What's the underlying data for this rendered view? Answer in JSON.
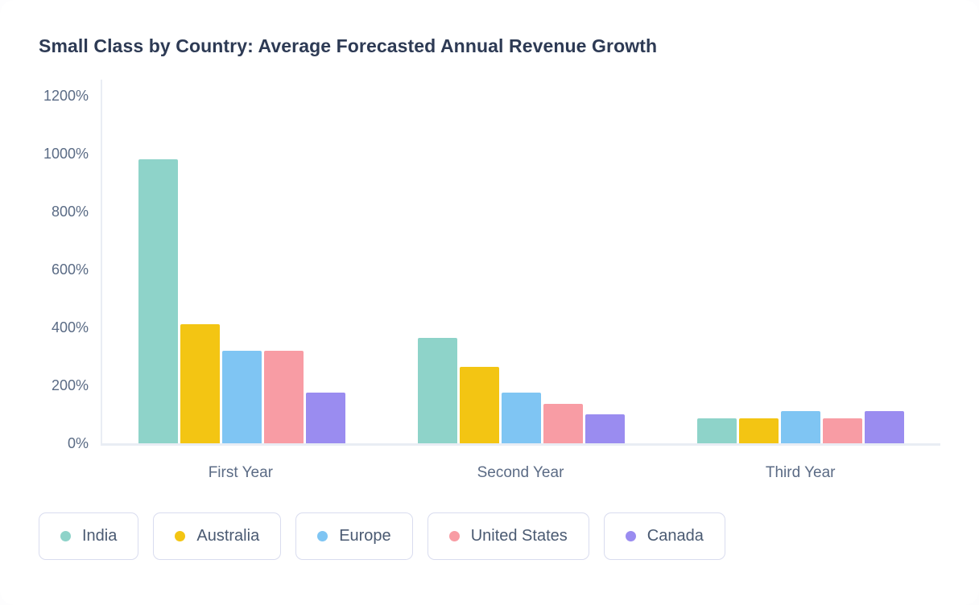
{
  "title": "Small Class by Country: Average Forecasted Annual Revenue Growth",
  "chart_data": {
    "type": "bar",
    "title": "Small Class by Country: Average Forecasted Annual Revenue Growth",
    "categories": [
      "First Year",
      "Second Year",
      "Third Year"
    ],
    "series": [
      {
        "name": "India",
        "color": "#8ed3c9",
        "values": [
          980,
          365,
          85
        ]
      },
      {
        "name": "Australia",
        "color": "#f3c513",
        "values": [
          410,
          265,
          85
        ]
      },
      {
        "name": "Europe",
        "color": "#7fc5f3",
        "values": [
          320,
          175,
          110
        ]
      },
      {
        "name": "United States",
        "color": "#f89ca4",
        "values": [
          320,
          135,
          85
        ]
      },
      {
        "name": "Canada",
        "color": "#9a8cf0",
        "values": [
          175,
          100,
          110
        ]
      }
    ],
    "xlabel": "",
    "ylabel": "",
    "ylim": [
      0,
      1200
    ],
    "ytick_step": 200,
    "ytick_labels": [
      "0%",
      "200%",
      "400%",
      "600%",
      "800%",
      "1000%",
      "1200%"
    ],
    "grid": false,
    "legend_position": "bottom"
  }
}
